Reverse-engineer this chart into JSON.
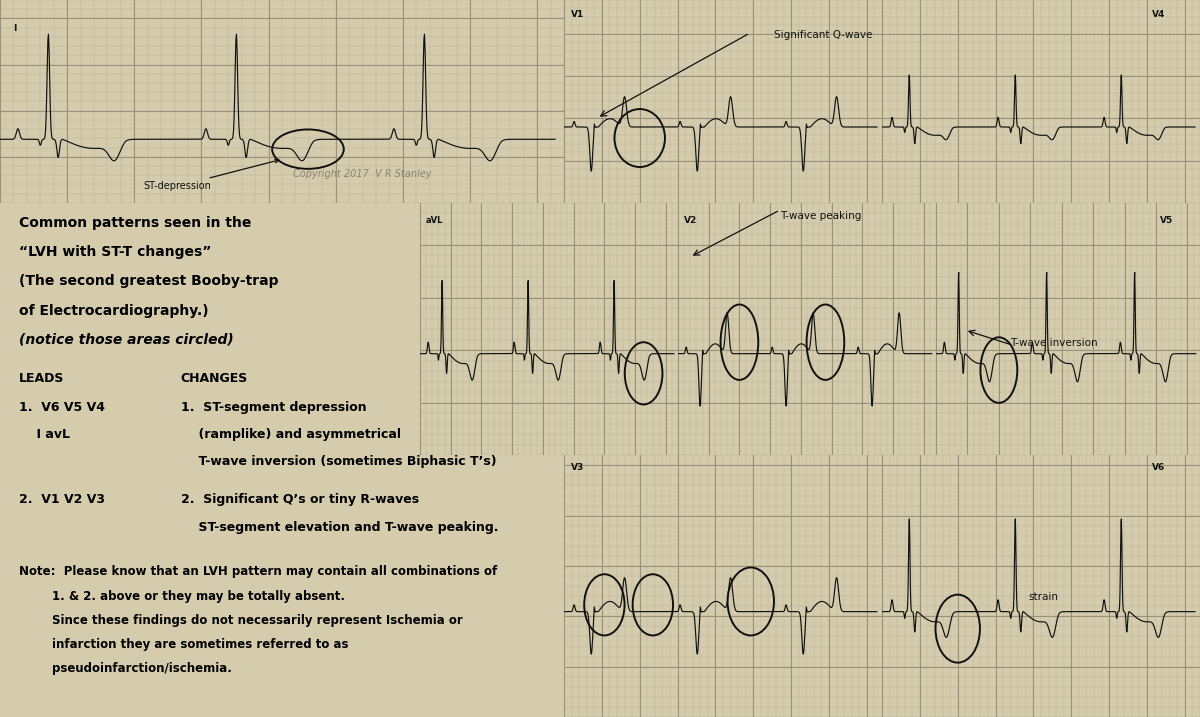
{
  "bg_ecg": "#d4ccac",
  "grid_minor_color": "#b8b098",
  "grid_major_color": "#9a9278",
  "ecg_color": "#111111",
  "text_bg": "#f0ede0",
  "copyright": "Copyright 2017  V R Stanley",
  "heading1": "Common patterns seen in the",
  "heading2": "“LVH with ST-T changes”",
  "heading3": "(The second greatest Booby-trap",
  "heading4": "of Electrocardiography.)",
  "heading5": "(notice those areas circled)",
  "leads_label": "LEADS",
  "changes_label": "CHANGES",
  "lead1_label": "1.  V6 V5 V4",
  "lead1b_label": "    I avL",
  "change1a": "1.  ST-segment depression",
  "change1b": "    (ramplike) and asymmetrical",
  "change1c": "    T-wave inversion (sometimes Biphasic T’s)",
  "lead2_label": "2.  V1 V2 V3",
  "change2a": "2.  Significant Q’s or tiny R-waves",
  "change2b": "    ST-segment elevation and T-wave peaking.",
  "note1": "Note:  Please know that an LVH pattern may contain all combinations of",
  "note2": "        1. & 2. above or they may be totally absent.",
  "note3": "        Since these findings do not necessarily represent Ischemia or",
  "note4": "        infarction they are sometimes referred to as",
  "note5": "        pseudoinfarction/ischemia.",
  "annot_q_wave": "Significant Q-wave",
  "annot_t_peak": "T-wave peaking",
  "annot_t_inv": "T-wave inversion",
  "annot_st_dep": "ST-depression",
  "annot_strain": "strain"
}
